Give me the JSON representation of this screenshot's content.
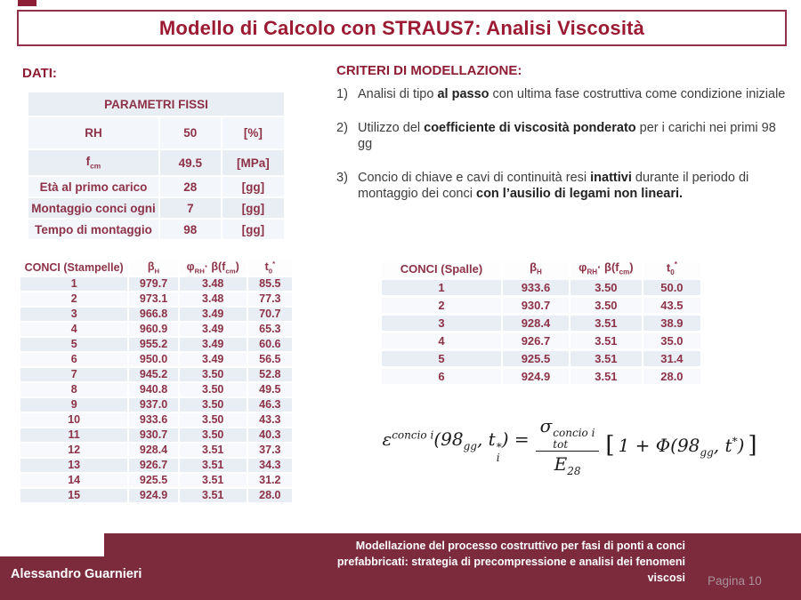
{
  "title": "Modello di Calcolo con STRAUS7: Analisi Viscosità",
  "dati": {
    "heading": "DATI:",
    "table": {
      "title": "PARAMETRI FISSI",
      "rows": [
        [
          "RH",
          "50",
          "[%]"
        ],
        [
          "f_{cm}",
          "49.5",
          "[MPa]"
        ],
        [
          "Età al primo carico",
          "28",
          "[gg]"
        ],
        [
          "Montaggio conci ogni",
          "7",
          "[gg]"
        ],
        [
          "Tempo di montaggio",
          "98",
          "[gg]"
        ]
      ]
    }
  },
  "criteri": {
    "heading": "CRITERI DI MODELLAZIONE:",
    "items": [
      {
        "num": "1)",
        "text": "Analisi di tipo **al passo** con ultima fase costruttiva come condizione iniziale"
      },
      {
        "num": "2)",
        "text": "Utilizzo del **coefficiente di viscosità ponderato** per i carichi nei primi 98 gg"
      },
      {
        "num": "3)",
        "text": "Concio di chiave e cavi di continuità resi **inattivi** durante il periodo di montaggio dei conci **con l’ausilio di legami non lineari.**"
      }
    ]
  },
  "stampelle": {
    "headers": [
      "CONCI (Stampelle)",
      "β_{H}",
      "φ_{RH}· β(f_{cm})",
      "t_{0}^{*}"
    ],
    "rows": [
      [
        "1",
        "979.7",
        "3.48",
        "85.5"
      ],
      [
        "2",
        "973.1",
        "3.48",
        "77.3"
      ],
      [
        "3",
        "966.8",
        "3.49",
        "70.7"
      ],
      [
        "4",
        "960.9",
        "3.49",
        "65.3"
      ],
      [
        "5",
        "955.2",
        "3.49",
        "60.6"
      ],
      [
        "6",
        "950.0",
        "3.49",
        "56.5"
      ],
      [
        "7",
        "945.2",
        "3.50",
        "52.8"
      ],
      [
        "8",
        "940.8",
        "3.50",
        "49.5"
      ],
      [
        "9",
        "937.0",
        "3.50",
        "46.3"
      ],
      [
        "10",
        "933.6",
        "3.50",
        "43.3"
      ],
      [
        "11",
        "930.7",
        "3.50",
        "40.3"
      ],
      [
        "12",
        "928.4",
        "3.51",
        "37.3"
      ],
      [
        "13",
        "926.7",
        "3.51",
        "34.3"
      ],
      [
        "14",
        "925.5",
        "3.51",
        "31.2"
      ],
      [
        "15",
        "924.9",
        "3.51",
        "28.0"
      ]
    ]
  },
  "spalle": {
    "headers": [
      "CONCI (Spalle)",
      "β_{H}",
      "φ_{RH}· β(f_{cm})",
      "t_{0}^{*}"
    ],
    "rows": [
      [
        "1",
        "933.6",
        "3.50",
        "50.0"
      ],
      [
        "2",
        "930.7",
        "3.50",
        "43.5"
      ],
      [
        "3",
        "928.4",
        "3.51",
        "38.9"
      ],
      [
        "4",
        "926.7",
        "3.51",
        "35.0"
      ],
      [
        "5",
        "925.5",
        "3.51",
        "31.4"
      ],
      [
        "6",
        "924.9",
        "3.51",
        "28.0"
      ]
    ]
  },
  "formula": {
    "left": "ε^{concio i}(98_{gg}, t~{*|i}) =",
    "numerator": "σ~{concio i|tot}",
    "denominator": "E_{28}",
    "open_bracket": "[",
    "body": "1 + Φ(98_{gg}, t^{*})",
    "close_bracket": "]"
  },
  "footer": {
    "author": "Alessandro Guarnieri",
    "thesis_lines": [
      "Modellazione del processo costruttivo per fasi di ponti a conci",
      "prefabbricati: strategia di precompressione e analisi dei fenomeni",
      "viscosi"
    ],
    "page": "Pagina 10"
  },
  "colors": {
    "maroon": "#7c2b3d",
    "title_text": "#9c1b33",
    "table_text": "#8d3247",
    "row_shade": "#e9edf4",
    "row_light": "#f7f9fc",
    "page_label": "#a9909b"
  }
}
